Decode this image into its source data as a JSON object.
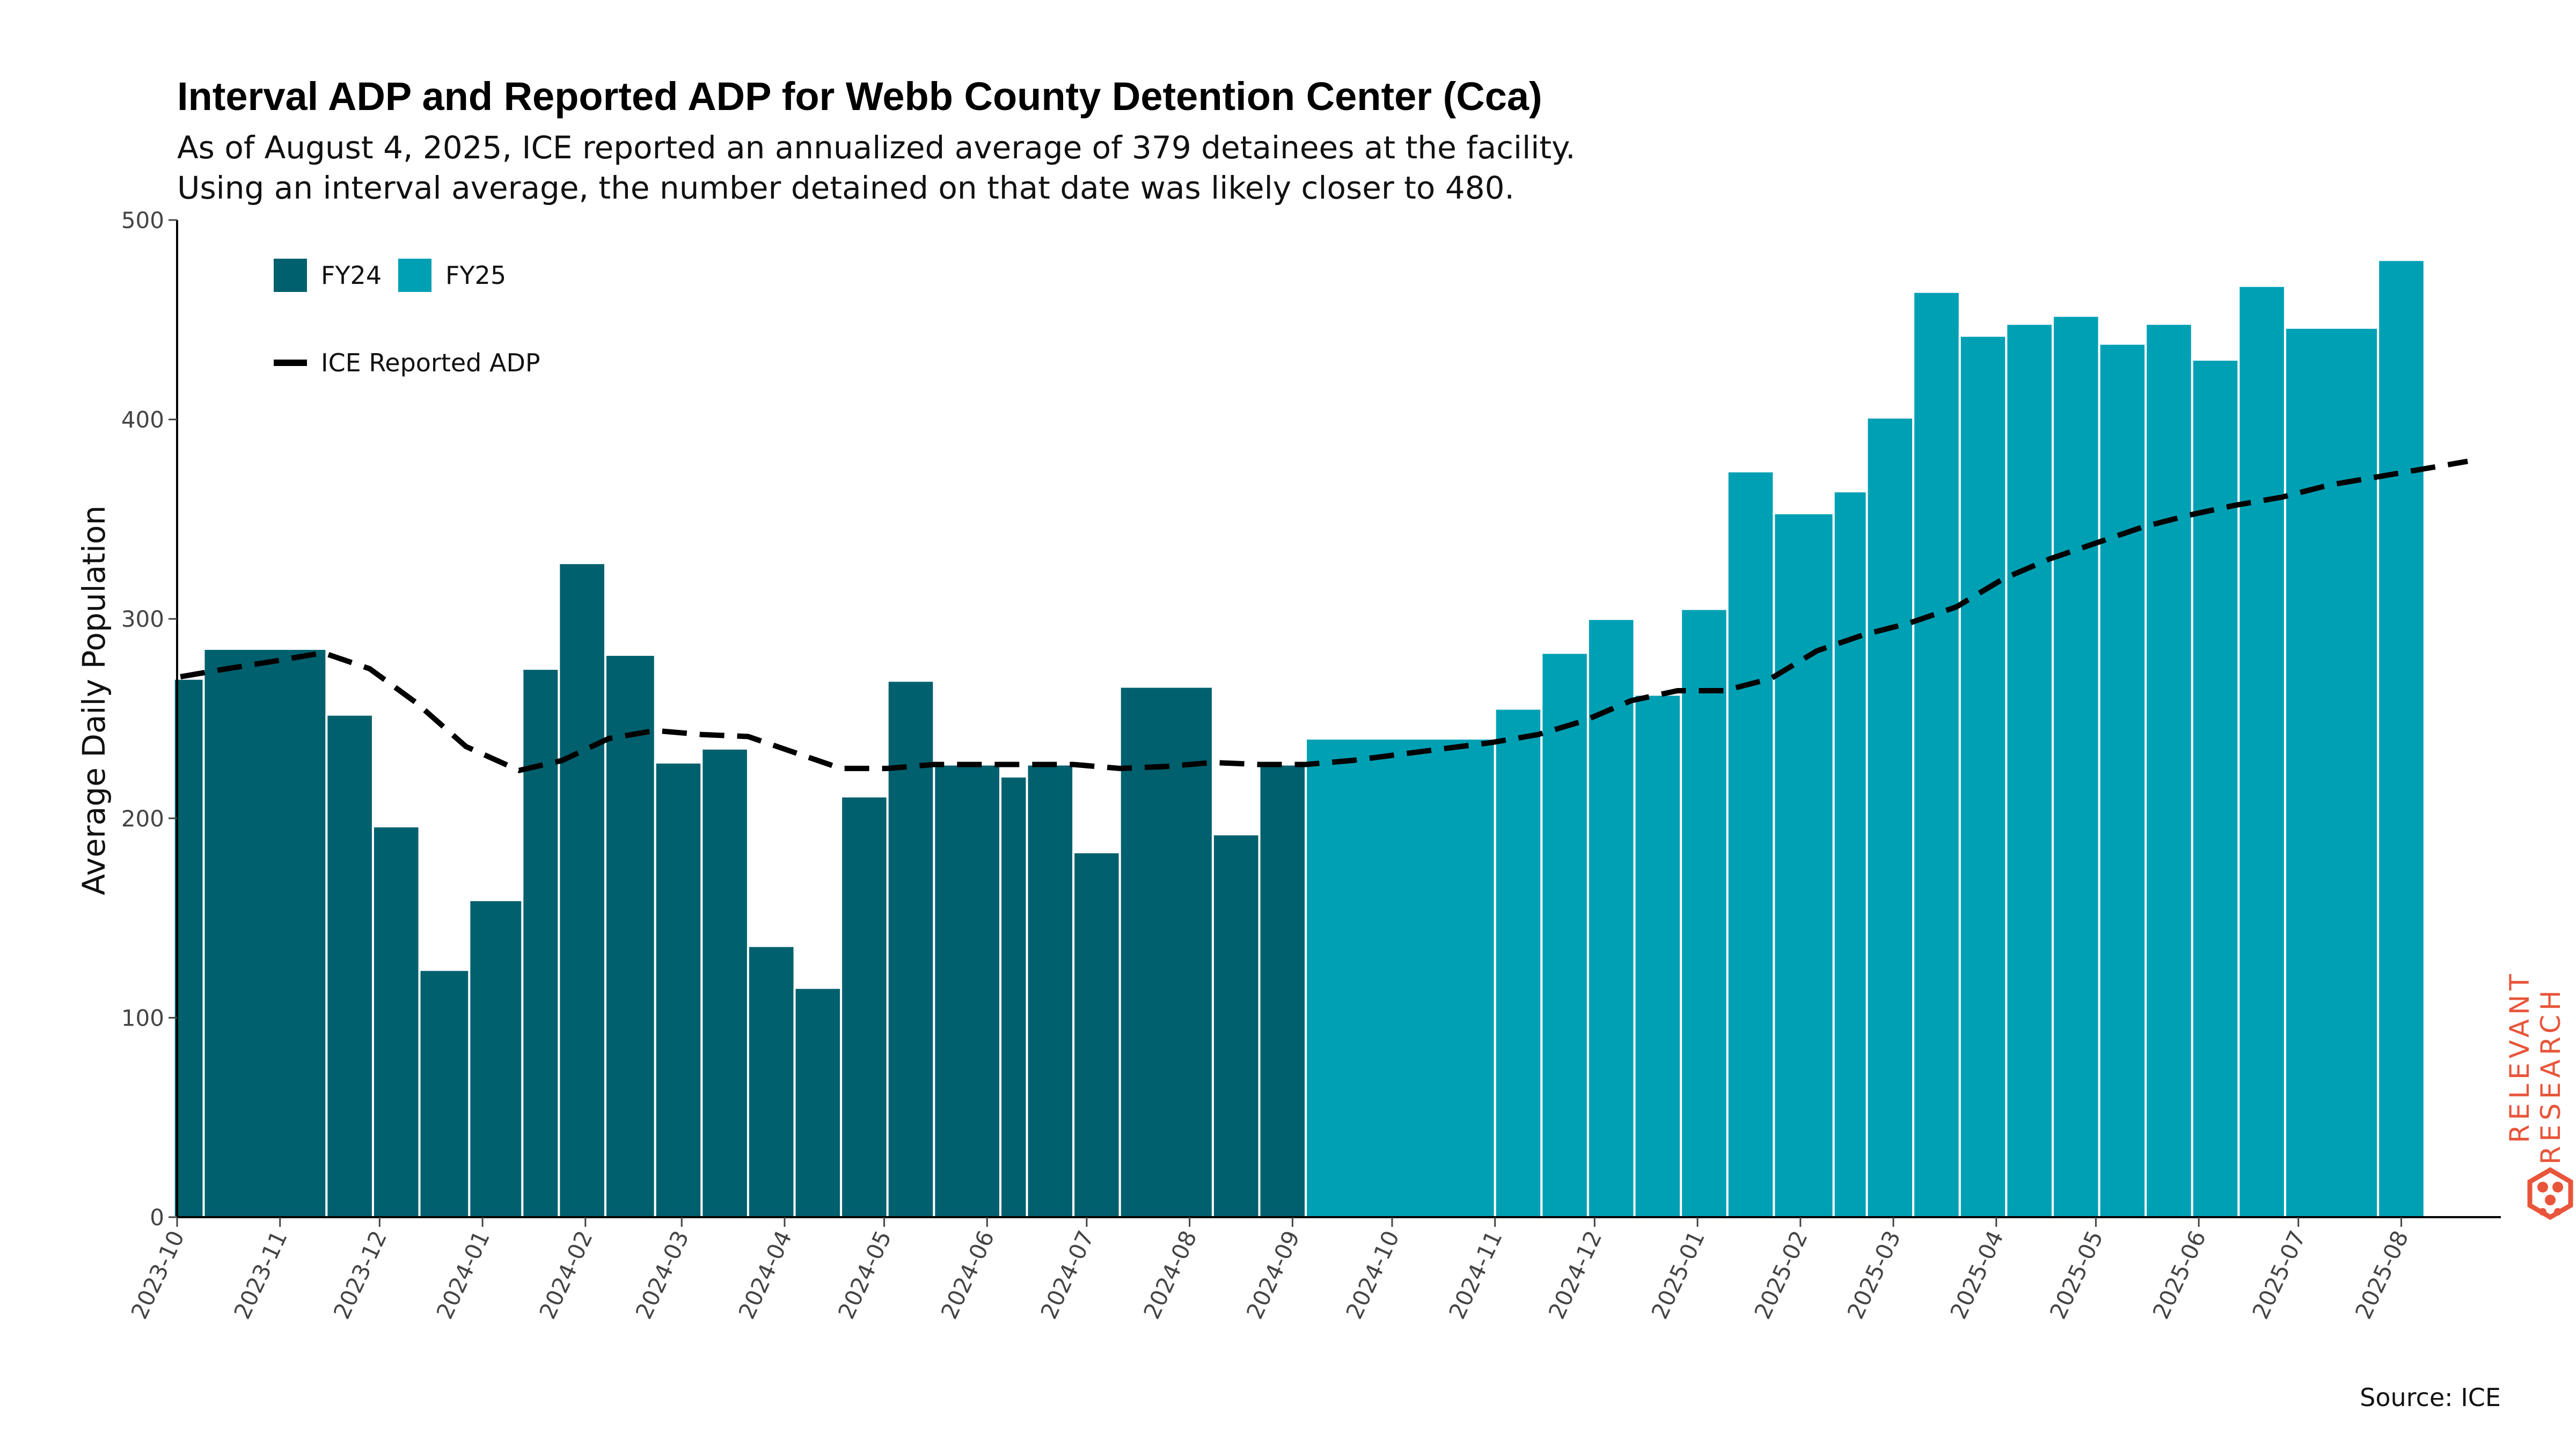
{
  "chart_data": {
    "type": "bar",
    "title": "Interval ADP and Reported ADP for Webb County Detention Center (Cca)",
    "subtitle_lines": [
      "As of August 4, 2025, ICE reported an annualized average of 379 detainees at the facility.",
      "Using an interval average, the number detained on that date was likely closer to 480."
    ],
    "ylabel": "Average Daily Population",
    "xlabel": "",
    "ylim": [
      0,
      500
    ],
    "yticks": [
      "0",
      "100",
      "200",
      "300",
      "400",
      "500"
    ],
    "xlim": [
      "2023-10-01",
      "2025-08-31"
    ],
    "xticks": [
      {
        "date": "2023-10-01",
        "label": "2023-10"
      },
      {
        "date": "2023-11-01",
        "label": "2023-11"
      },
      {
        "date": "2023-12-01",
        "label": "2023-12"
      },
      {
        "date": "2024-01-01",
        "label": "2024-01"
      },
      {
        "date": "2024-02-01",
        "label": "2024-02"
      },
      {
        "date": "2024-03-01",
        "label": "2024-03"
      },
      {
        "date": "2024-04-01",
        "label": "2024-04"
      },
      {
        "date": "2024-05-01",
        "label": "2024-05"
      },
      {
        "date": "2024-06-01",
        "label": "2024-06"
      },
      {
        "date": "2024-07-01",
        "label": "2024-07"
      },
      {
        "date": "2024-08-01",
        "label": "2024-08"
      },
      {
        "date": "2024-09-01",
        "label": "2024-09"
      },
      {
        "date": "2024-10-01",
        "label": "2024-10"
      },
      {
        "date": "2024-11-01",
        "label": "2024-11"
      },
      {
        "date": "2024-12-01",
        "label": "2024-12"
      },
      {
        "date": "2025-01-01",
        "label": "2025-01"
      },
      {
        "date": "2025-02-01",
        "label": "2025-02"
      },
      {
        "date": "2025-03-01",
        "label": "2025-03"
      },
      {
        "date": "2025-04-01",
        "label": "2025-04"
      },
      {
        "date": "2025-05-01",
        "label": "2025-05"
      },
      {
        "date": "2025-06-01",
        "label": "2025-06"
      },
      {
        "date": "2025-07-01",
        "label": "2025-07"
      },
      {
        "date": "2025-08-01",
        "label": "2025-08"
      }
    ],
    "bars": [
      {
        "start": "2023-09-30",
        "end": "2023-10-09",
        "value": 270,
        "series": "FY24"
      },
      {
        "start": "2023-10-09",
        "end": "2023-11-15",
        "value": 285,
        "series": "FY24"
      },
      {
        "start": "2023-11-15",
        "end": "2023-11-29",
        "value": 252,
        "series": "FY24"
      },
      {
        "start": "2023-11-29",
        "end": "2023-12-13",
        "value": 196,
        "series": "FY24"
      },
      {
        "start": "2023-12-13",
        "end": "2023-12-28",
        "value": 124,
        "series": "FY24"
      },
      {
        "start": "2023-12-28",
        "end": "2024-01-13",
        "value": 159,
        "series": "FY24"
      },
      {
        "start": "2024-01-13",
        "end": "2024-01-24",
        "value": 275,
        "series": "FY24"
      },
      {
        "start": "2024-01-24",
        "end": "2024-02-07",
        "value": 328,
        "series": "FY24"
      },
      {
        "start": "2024-02-07",
        "end": "2024-02-22",
        "value": 282,
        "series": "FY24"
      },
      {
        "start": "2024-02-22",
        "end": "2024-03-07",
        "value": 228,
        "series": "FY24"
      },
      {
        "start": "2024-03-07",
        "end": "2024-03-21",
        "value": 235,
        "series": "FY24"
      },
      {
        "start": "2024-03-21",
        "end": "2024-04-04",
        "value": 136,
        "series": "FY24"
      },
      {
        "start": "2024-04-04",
        "end": "2024-04-18",
        "value": 115,
        "series": "FY24"
      },
      {
        "start": "2024-04-18",
        "end": "2024-05-02",
        "value": 211,
        "series": "FY24"
      },
      {
        "start": "2024-05-02",
        "end": "2024-05-16",
        "value": 269,
        "series": "FY24"
      },
      {
        "start": "2024-05-16",
        "end": "2024-06-05",
        "value": 227,
        "series": "FY24"
      },
      {
        "start": "2024-06-05",
        "end": "2024-06-13",
        "value": 221,
        "series": "FY24"
      },
      {
        "start": "2024-06-13",
        "end": "2024-06-27",
        "value": 227,
        "series": "FY24"
      },
      {
        "start": "2024-06-27",
        "end": "2024-07-11",
        "value": 183,
        "series": "FY24"
      },
      {
        "start": "2024-07-11",
        "end": "2024-08-08",
        "value": 266,
        "series": "FY24"
      },
      {
        "start": "2024-08-08",
        "end": "2024-08-22",
        "value": 192,
        "series": "FY24"
      },
      {
        "start": "2024-08-22",
        "end": "2024-09-05",
        "value": 227,
        "series": "FY24"
      },
      {
        "start": "2024-09-05",
        "end": "2024-11-01",
        "value": 240,
        "series": "FY25"
      },
      {
        "start": "2024-11-01",
        "end": "2024-11-15",
        "value": 255,
        "series": "FY25"
      },
      {
        "start": "2024-11-15",
        "end": "2024-11-29",
        "value": 283,
        "series": "FY25"
      },
      {
        "start": "2024-11-29",
        "end": "2024-12-13",
        "value": 300,
        "series": "FY25"
      },
      {
        "start": "2024-12-13",
        "end": "2024-12-27",
        "value": 262,
        "series": "FY25"
      },
      {
        "start": "2024-12-27",
        "end": "2025-01-10",
        "value": 305,
        "series": "FY25"
      },
      {
        "start": "2025-01-10",
        "end": "2025-01-24",
        "value": 374,
        "series": "FY25"
      },
      {
        "start": "2025-01-24",
        "end": "2025-02-11",
        "value": 353,
        "series": "FY25"
      },
      {
        "start": "2025-02-11",
        "end": "2025-02-21",
        "value": 364,
        "series": "FY25"
      },
      {
        "start": "2025-02-21",
        "end": "2025-03-07",
        "value": 401,
        "series": "FY25"
      },
      {
        "start": "2025-03-07",
        "end": "2025-03-21",
        "value": 464,
        "series": "FY25"
      },
      {
        "start": "2025-03-21",
        "end": "2025-04-04",
        "value": 442,
        "series": "FY25"
      },
      {
        "start": "2025-04-04",
        "end": "2025-04-18",
        "value": 448,
        "series": "FY25"
      },
      {
        "start": "2025-04-18",
        "end": "2025-05-02",
        "value": 452,
        "series": "FY25"
      },
      {
        "start": "2025-05-02",
        "end": "2025-05-16",
        "value": 438,
        "series": "FY25"
      },
      {
        "start": "2025-05-16",
        "end": "2025-05-30",
        "value": 448,
        "series": "FY25"
      },
      {
        "start": "2025-05-30",
        "end": "2025-06-13",
        "value": 430,
        "series": "FY25"
      },
      {
        "start": "2025-06-13",
        "end": "2025-06-27",
        "value": 467,
        "series": "FY25"
      },
      {
        "start": "2025-06-27",
        "end": "2025-07-25",
        "value": 446,
        "series": "FY25"
      },
      {
        "start": "2025-07-25",
        "end": "2025-08-08",
        "value": 480,
        "series": "FY25"
      }
    ],
    "line": {
      "name": "ICE Reported ADP",
      "points": [
        {
          "date": "2023-10-02",
          "value": 271
        },
        {
          "date": "2023-10-16",
          "value": 275
        },
        {
          "date": "2023-10-31",
          "value": 279
        },
        {
          "date": "2023-11-14",
          "value": 283
        },
        {
          "date": "2023-11-28",
          "value": 275
        },
        {
          "date": "2023-12-12",
          "value": 258
        },
        {
          "date": "2023-12-27",
          "value": 236
        },
        {
          "date": "2024-01-12",
          "value": 224
        },
        {
          "date": "2024-01-25",
          "value": 229
        },
        {
          "date": "2024-02-08",
          "value": 240
        },
        {
          "date": "2024-02-22",
          "value": 244
        },
        {
          "date": "2024-03-07",
          "value": 242
        },
        {
          "date": "2024-03-21",
          "value": 241
        },
        {
          "date": "2024-04-04",
          "value": 233
        },
        {
          "date": "2024-04-18",
          "value": 225
        },
        {
          "date": "2024-05-02",
          "value": 225
        },
        {
          "date": "2024-05-16",
          "value": 227
        },
        {
          "date": "2024-05-30",
          "value": 227
        },
        {
          "date": "2024-06-13",
          "value": 227
        },
        {
          "date": "2024-06-27",
          "value": 227
        },
        {
          "date": "2024-07-11",
          "value": 225
        },
        {
          "date": "2024-07-25",
          "value": 226
        },
        {
          "date": "2024-08-08",
          "value": 228
        },
        {
          "date": "2024-08-22",
          "value": 227
        },
        {
          "date": "2024-09-05",
          "value": 227
        },
        {
          "date": "2024-09-19",
          "value": 229
        },
        {
          "date": "2024-10-03",
          "value": 232
        },
        {
          "date": "2024-10-17",
          "value": 235
        },
        {
          "date": "2024-10-31",
          "value": 238
        },
        {
          "date": "2024-11-14",
          "value": 242
        },
        {
          "date": "2024-11-28",
          "value": 249
        },
        {
          "date": "2024-12-12",
          "value": 259
        },
        {
          "date": "2024-12-26",
          "value": 264
        },
        {
          "date": "2025-01-09",
          "value": 264
        },
        {
          "date": "2025-01-23",
          "value": 270
        },
        {
          "date": "2025-02-06",
          "value": 284
        },
        {
          "date": "2025-02-20",
          "value": 292
        },
        {
          "date": "2025-03-06",
          "value": 298
        },
        {
          "date": "2025-03-20",
          "value": 306
        },
        {
          "date": "2025-04-03",
          "value": 320
        },
        {
          "date": "2025-04-17",
          "value": 330
        },
        {
          "date": "2025-05-01",
          "value": 338
        },
        {
          "date": "2025-05-15",
          "value": 346
        },
        {
          "date": "2025-05-29",
          "value": 352
        },
        {
          "date": "2025-06-12",
          "value": 357
        },
        {
          "date": "2025-06-26",
          "value": 361
        },
        {
          "date": "2025-07-10",
          "value": 367
        },
        {
          "date": "2025-07-24",
          "value": 371
        },
        {
          "date": "2025-08-07",
          "value": 375
        },
        {
          "date": "2025-08-21",
          "value": 379
        }
      ]
    },
    "legend": {
      "placement": "top-left",
      "entries": [
        {
          "label": "FY24",
          "color": "#00606e",
          "kind": "bar"
        },
        {
          "label": "FY25",
          "color": "#00a0b4",
          "kind": "bar"
        },
        {
          "label": "ICE Reported ADP",
          "color": "#000000",
          "kind": "dashed-line"
        }
      ]
    },
    "colors": {
      "FY24": "#00606e",
      "FY25": "#00a0b4",
      "line": "#000000"
    },
    "grid": false
  },
  "source": "Source: ICE",
  "logo": {
    "line1": "RELEVANT",
    "line2": "RESEARCH",
    "color": "#e8553a"
  }
}
